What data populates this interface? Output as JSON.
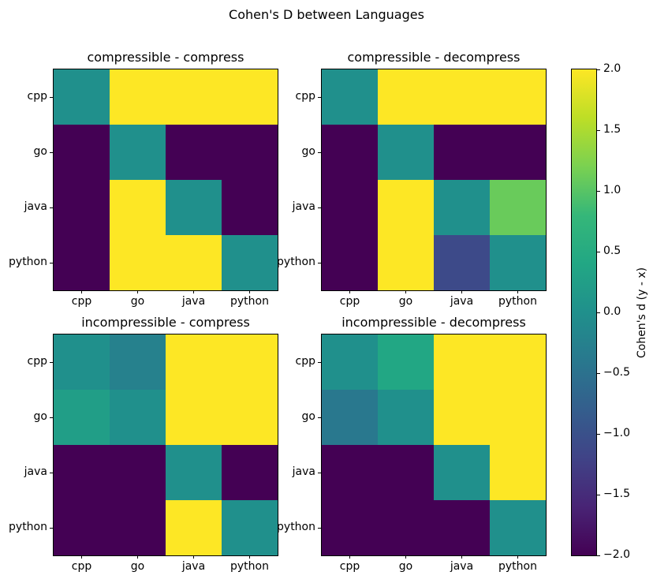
{
  "figure": {
    "title": "Cohen's D between Languages"
  },
  "colorbar": {
    "label": "Cohen's d (y - x)",
    "ticks": [
      "2.0",
      "1.5",
      "1.0",
      "0.5",
      "0.0",
      "−0.5",
      "−1.0",
      "−1.5",
      "−2.0"
    ],
    "tick_values": [
      2.0,
      1.5,
      1.0,
      0.5,
      0.0,
      -0.5,
      -1.0,
      -1.5,
      -2.0
    ],
    "vmin": -2.0,
    "vmax": 2.0,
    "colormap": "viridis",
    "position": "right"
  },
  "chart_data": [
    {
      "type": "heatmap",
      "title": "compressible - compress",
      "x_categories": [
        "cpp",
        "go",
        "java",
        "python"
      ],
      "y_categories": [
        "cpp",
        "go",
        "java",
        "python"
      ],
      "values": [
        [
          0,
          2,
          2,
          2
        ],
        [
          -2,
          0,
          -2,
          -2
        ],
        [
          -2,
          2,
          0,
          -2
        ],
        [
          -2,
          2,
          2,
          0
        ]
      ],
      "vmin": -2.0,
      "vmax": 2.0,
      "colormap": "viridis",
      "grid": false,
      "legend": false
    },
    {
      "type": "heatmap",
      "title": "compressible - decompress",
      "x_categories": [
        "cpp",
        "go",
        "java",
        "python"
      ],
      "y_categories": [
        "cpp",
        "go",
        "java",
        "python"
      ],
      "values": [
        [
          0,
          2,
          2,
          2
        ],
        [
          -2,
          0,
          -2,
          -2
        ],
        [
          -2,
          2,
          0,
          1.1
        ],
        [
          -2,
          2,
          -1.1,
          0
        ]
      ],
      "vmin": -2.0,
      "vmax": 2.0,
      "colormap": "viridis",
      "grid": false,
      "legend": false
    },
    {
      "type": "heatmap",
      "title": "incompressible - compress",
      "x_categories": [
        "cpp",
        "go",
        "java",
        "python"
      ],
      "y_categories": [
        "cpp",
        "go",
        "java",
        "python"
      ],
      "values": [
        [
          0,
          -0.25,
          2,
          2
        ],
        [
          0.25,
          0,
          2,
          2
        ],
        [
          -2,
          -2,
          0,
          -2
        ],
        [
          -2,
          -2,
          2,
          0
        ]
      ],
      "vmin": -2.0,
      "vmax": 2.0,
      "colormap": "viridis",
      "grid": false,
      "legend": false
    },
    {
      "type": "heatmap",
      "title": "incompressible - decompress",
      "x_categories": [
        "cpp",
        "go",
        "java",
        "python"
      ],
      "y_categories": [
        "cpp",
        "go",
        "java",
        "python"
      ],
      "values": [
        [
          0,
          0.4,
          2,
          2
        ],
        [
          -0.4,
          0,
          2,
          2
        ],
        [
          -2,
          -2,
          0,
          2
        ],
        [
          -2,
          -2,
          -2,
          0
        ]
      ],
      "vmin": -2.0,
      "vmax": 2.0,
      "colormap": "viridis",
      "grid": false,
      "legend": false
    }
  ]
}
